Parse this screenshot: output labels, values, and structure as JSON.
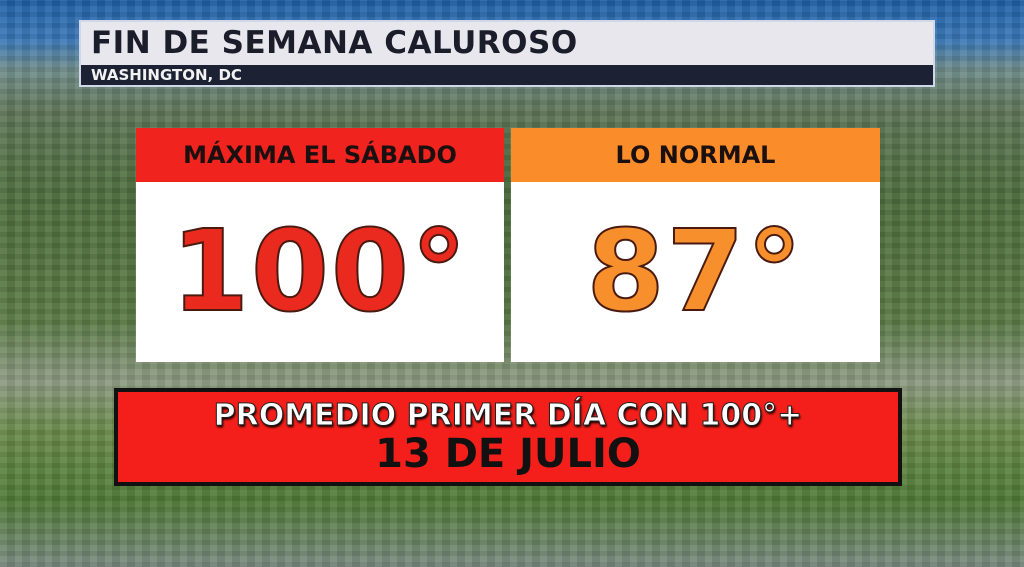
{
  "header": {
    "title": "FIN DE SEMANA CALUROSO",
    "location": "WASHINGTON, DC"
  },
  "cards": [
    {
      "label": "MÁXIMA EL SÁBADO",
      "value": "100°",
      "color": "#f0231e"
    },
    {
      "label": "LO NORMAL",
      "value": "87°",
      "color": "#fb8c2a"
    }
  ],
  "banner": {
    "line1": "PROMEDIO PRIMER DÍA CON 100°+",
    "line2": "13 DE JULIO",
    "color": "#f41f1a"
  }
}
